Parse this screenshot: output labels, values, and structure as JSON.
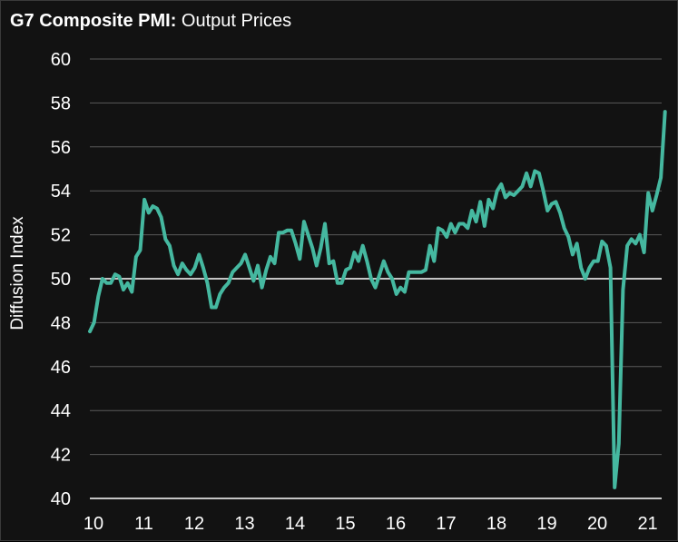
{
  "chart_data": {
    "type": "line",
    "title_bold": "G7 Composite PMI:",
    "title_rest": " Output Prices",
    "xlabel": "",
    "ylabel": "Diffusion Index",
    "ylim": [
      40,
      60
    ],
    "yticks": [
      "40",
      "42",
      "44",
      "46",
      "48",
      "50",
      "52",
      "54",
      "56",
      "58",
      "60"
    ],
    "xlim": [
      2010,
      2021.35
    ],
    "xticks": [
      "10",
      "11",
      "12",
      "13",
      "14",
      "15",
      "16",
      "17",
      "18",
      "19",
      "20",
      "21"
    ],
    "reference_line": 50,
    "colors": {
      "line": "#45b8a0",
      "background": "#121212",
      "grid": "#5a5a5a",
      "reference": "#ffffff"
    },
    "series": [
      {
        "name": "G7 Composite PMI: Output Prices",
        "start": "2010-01",
        "values": [
          47.6,
          48.0,
          49.2,
          50.0,
          49.8,
          49.8,
          50.2,
          50.1,
          49.5,
          49.8,
          49.4,
          51.0,
          51.3,
          53.6,
          53.0,
          53.3,
          53.2,
          52.8,
          51.8,
          51.5,
          50.6,
          50.2,
          50.7,
          50.4,
          50.2,
          50.5,
          51.1,
          50.5,
          49.8,
          48.7,
          48.7,
          49.3,
          49.6,
          49.8,
          50.3,
          50.5,
          50.7,
          51.1,
          50.5,
          49.9,
          50.6,
          49.6,
          50.4,
          51.0,
          50.7,
          52.1,
          52.1,
          52.2,
          52.2,
          51.6,
          50.9,
          52.6,
          52.0,
          51.4,
          50.6,
          51.4,
          52.5,
          50.7,
          50.8,
          49.8,
          49.8,
          50.4,
          50.5,
          51.2,
          50.8,
          51.5,
          50.8,
          50.0,
          49.6,
          50.2,
          50.8,
          50.3,
          50.0,
          49.3,
          49.6,
          49.4,
          50.3,
          50.3,
          50.3,
          50.3,
          50.4,
          51.5,
          50.8,
          52.3,
          52.2,
          51.9,
          52.5,
          52.1,
          52.5,
          52.5,
          52.3,
          53.1,
          52.6,
          53.5,
          52.4,
          53.6,
          53.2,
          54.0,
          54.3,
          53.7,
          53.9,
          53.8,
          54.0,
          54.2,
          54.8,
          54.2,
          54.9,
          54.8,
          54.0,
          53.1,
          53.4,
          53.5,
          53.0,
          52.3,
          51.9,
          51.1,
          51.6,
          50.5,
          50.0,
          50.5,
          50.8,
          50.8,
          51.7,
          51.5,
          50.5,
          40.5,
          42.5,
          49.5,
          51.5,
          51.8,
          51.6,
          52.0,
          51.2,
          53.9,
          53.1,
          53.8,
          54.6,
          57.6
        ]
      }
    ]
  }
}
